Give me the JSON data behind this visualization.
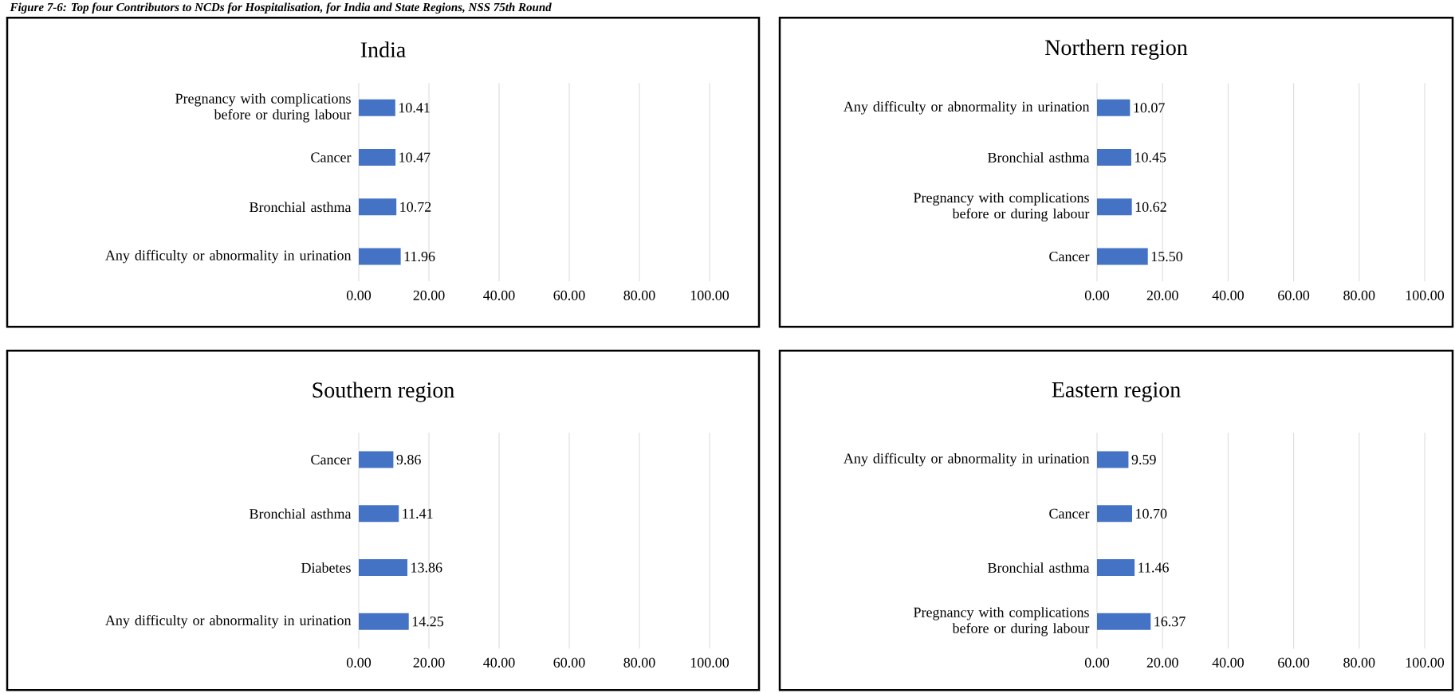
{
  "chart_data": [
    {
      "type": "bar",
      "orientation": "horizontal",
      "title": "India",
      "categories": [
        "Pregnancy with complications before or during labour",
        "Cancer",
        "Bronchial asthma",
        "Any difficulty or abnormality in urination"
      ],
      "values": [
        10.41,
        10.47,
        10.72,
        11.96
      ],
      "value_labels": [
        "10.41",
        "10.47",
        "10.72",
        "11.96"
      ],
      "color": "#4472c4",
      "xlim": [
        0,
        100
      ],
      "xticks": [
        {
          "value": 0,
          "label": "0.00"
        },
        {
          "value": 20,
          "label": "20.00"
        },
        {
          "value": 40,
          "label": "40.00"
        },
        {
          "value": 60,
          "label": "60.00"
        },
        {
          "value": 80,
          "label": "80.00"
        },
        {
          "value": 100,
          "label": "100.00"
        }
      ],
      "grid": "x",
      "annotations": [
        "Figure 7-6: Top four Contributors to NCDs for Hospitalisation, for India and State Regions, NSS 75th Round"
      ]
    },
    {
      "type": "bar",
      "orientation": "horizontal",
      "title": "Northern region",
      "categories": [
        "Any difficulty or abnormality in urination",
        "Bronchial asthma",
        "Pregnancy with complications before or during labour",
        "Cancer"
      ],
      "values": [
        10.07,
        10.45,
        10.62,
        15.5
      ],
      "value_labels": [
        "10.07",
        "10.45",
        "10.62",
        "15.50"
      ],
      "color": "#4472c4",
      "xlim": [
        0,
        100
      ],
      "xticks": [
        {
          "value": 0,
          "label": "0.00"
        },
        {
          "value": 20,
          "label": "20.00"
        },
        {
          "value": 40,
          "label": "40.00"
        },
        {
          "value": 60,
          "label": "60.00"
        },
        {
          "value": 80,
          "label": "80.00"
        },
        {
          "value": 100,
          "label": "100.00"
        }
      ],
      "grid": "x"
    },
    {
      "type": "bar",
      "orientation": "horizontal",
      "title": "Southern region",
      "categories": [
        "Cancer",
        "Bronchial asthma",
        "Diabetes",
        "Any difficulty or abnormality in urination"
      ],
      "values": [
        9.86,
        11.41,
        13.86,
        14.25
      ],
      "value_labels": [
        "9.86",
        "11.41",
        "13.86",
        "14.25"
      ],
      "color": "#4472c4",
      "xlim": [
        0,
        100
      ],
      "xticks": [
        {
          "value": 0,
          "label": "0.00"
        },
        {
          "value": 20,
          "label": "20.00"
        },
        {
          "value": 40,
          "label": "40.00"
        },
        {
          "value": 60,
          "label": "60.00"
        },
        {
          "value": 80,
          "label": "80.00"
        },
        {
          "value": 100,
          "label": "100.00"
        }
      ],
      "grid": "x"
    },
    {
      "type": "bar",
      "orientation": "horizontal",
      "title": "Eastern region",
      "categories": [
        "Any difficulty or abnormality in urination",
        "Cancer",
        "Bronchial asthma",
        "Pregnancy with complications before or during labour"
      ],
      "values": [
        9.59,
        10.7,
        11.46,
        16.37
      ],
      "value_labels": [
        "9.59",
        "10.70",
        "11.46",
        "16.37"
      ],
      "color": "#4472c4",
      "xlim": [
        0,
        100
      ],
      "xticks": [
        {
          "value": 0,
          "label": "0.00"
        },
        {
          "value": 20,
          "label": "20.00"
        },
        {
          "value": 40,
          "label": "40.00"
        },
        {
          "value": 60,
          "label": "60.00"
        },
        {
          "value": 80,
          "label": "80.00"
        },
        {
          "value": 100,
          "label": "100.00"
        }
      ],
      "grid": "x"
    }
  ]
}
